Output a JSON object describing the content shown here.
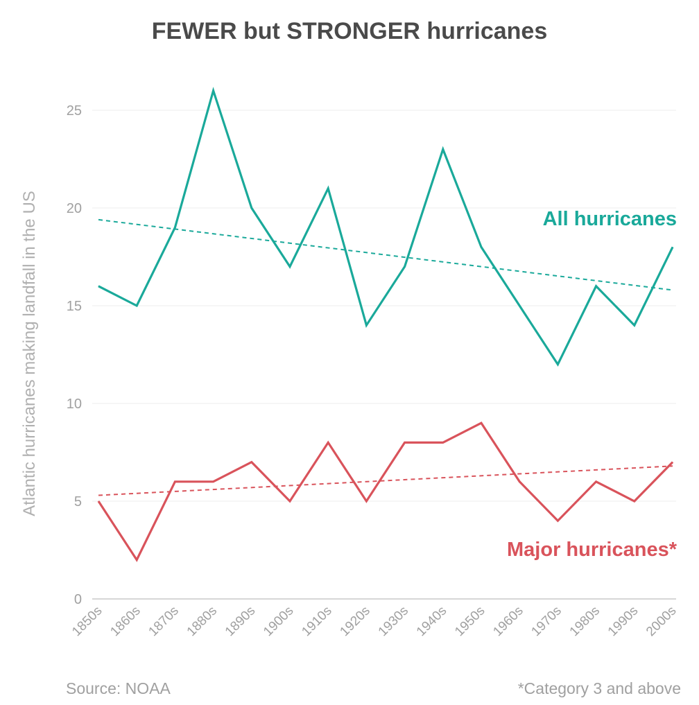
{
  "title": "FEWER but STRONGER hurricanes",
  "source": "Source: NOAA",
  "footnote": "*Category 3 and above",
  "colors": {
    "all": "#1aa99a",
    "major": "#d9535b",
    "grid": "#ececec",
    "text": "#a0a0a0",
    "title": "#4a4a4a"
  },
  "chart_data": {
    "type": "line",
    "title": "FEWER but STRONGER hurricanes",
    "ylabel": "Atlantic hurricanes making landfall in the US",
    "xlabel": "",
    "ylim": [
      0,
      26
    ],
    "yticks": [
      0,
      5,
      10,
      15,
      20,
      25
    ],
    "grid": true,
    "categories": [
      "1850s",
      "1860s",
      "1870s",
      "1880s",
      "1890s",
      "1900s",
      "1910s",
      "1920s",
      "1930s",
      "1940s",
      "1950s",
      "1960s",
      "1970s",
      "1980s",
      "1990s",
      "2000s"
    ],
    "series": [
      {
        "name": "All hurricanes",
        "color": "#1aa99a",
        "values": [
          16,
          15,
          19,
          26,
          20,
          17,
          21,
          14,
          17,
          23,
          18,
          15,
          12,
          16,
          14,
          18
        ],
        "trend": [
          19.4,
          15.8
        ]
      },
      {
        "name": "Major hurricanes*",
        "color": "#d9535b",
        "values": [
          5,
          2,
          6,
          6,
          7,
          5,
          8,
          5,
          8,
          8,
          9,
          6,
          4,
          6,
          5,
          7
        ],
        "trend": [
          5.3,
          6.8
        ]
      }
    ]
  }
}
